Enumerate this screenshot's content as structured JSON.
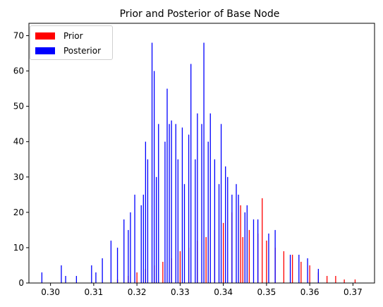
{
  "chart_data": {
    "type": "bar",
    "title": "Prior and Posterior of Base Node",
    "xlabel": "",
    "ylabel": "",
    "xlim": [
      0.295,
      0.375
    ],
    "ylim": [
      0,
      73.5
    ],
    "xticks": [
      "0.30",
      "0.31",
      "0.32",
      "0.33",
      "0.34",
      "0.35",
      "0.36",
      "0.37"
    ],
    "yticks": [
      "0",
      "10",
      "20",
      "30",
      "40",
      "50",
      "60",
      "70"
    ],
    "legend": {
      "position": "top-left",
      "entries": [
        "Prior",
        "Posterior"
      ]
    },
    "series": [
      {
        "name": "Prior",
        "color": "#ff0000",
        "note_x_center": 0.343,
        "x": [
          0.3155,
          0.318,
          0.32,
          0.322,
          0.324,
          0.326,
          0.328,
          0.33,
          0.332,
          0.334,
          0.336,
          0.338,
          0.34,
          0.342,
          0.344,
          0.3445,
          0.346,
          0.348,
          0.349,
          0.35,
          0.352,
          0.354,
          0.356,
          0.358,
          0.36,
          0.362,
          0.364,
          0.366,
          0.368,
          0.3705
        ],
        "values": [
          1,
          2,
          3,
          4,
          5,
          6,
          7,
          9,
          10,
          12,
          13,
          15,
          17,
          20,
          22,
          13,
          15,
          14,
          24,
          12,
          10,
          9,
          8,
          6,
          5,
          3,
          2,
          2,
          1,
          1
        ]
      },
      {
        "name": "Posterior",
        "color": "#0000ff",
        "x": [
          0.298,
          0.3025,
          0.3035,
          0.306,
          0.3095,
          0.3105,
          0.312,
          0.314,
          0.3155,
          0.317,
          0.318,
          0.3185,
          0.3195,
          0.321,
          0.3215,
          0.322,
          0.3225,
          0.3235,
          0.324,
          0.3245,
          0.325,
          0.3265,
          0.327,
          0.3275,
          0.328,
          0.329,
          0.3295,
          0.3305,
          0.331,
          0.332,
          0.3325,
          0.3335,
          0.334,
          0.335,
          0.3355,
          0.3365,
          0.337,
          0.338,
          0.339,
          0.3395,
          0.3405,
          0.341,
          0.342,
          0.343,
          0.3435,
          0.345,
          0.3455,
          0.347,
          0.348,
          0.3505,
          0.352,
          0.3555,
          0.3575,
          0.3595,
          0.362
        ],
        "values": [
          3,
          5,
          2,
          2,
          5,
          3,
          7,
          12,
          10,
          18,
          15,
          20,
          25,
          22,
          25,
          40,
          35,
          68,
          60,
          30,
          45,
          40,
          55,
          45,
          46,
          45,
          35,
          44,
          28,
          42,
          62,
          35,
          48,
          45,
          68,
          40,
          48,
          35,
          28,
          45,
          33,
          30,
          25,
          28,
          25,
          20,
          22,
          18,
          18,
          14,
          15,
          8,
          8,
          7,
          4
        ]
      }
    ]
  }
}
